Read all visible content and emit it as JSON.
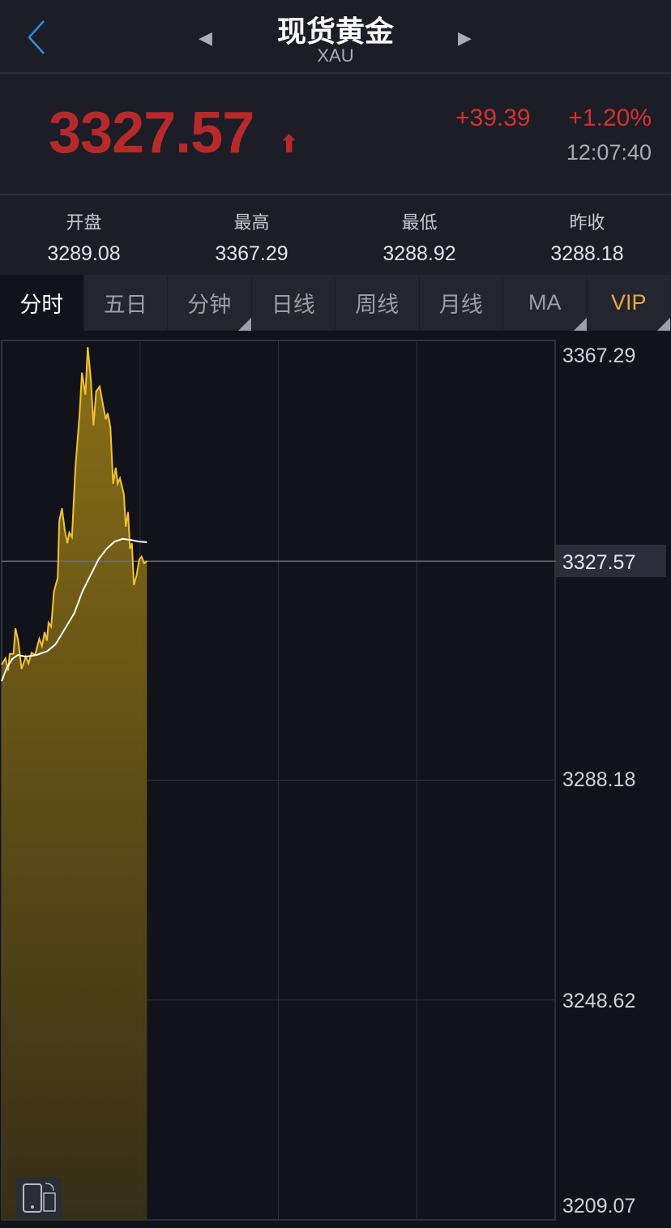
{
  "header": {
    "title": "现货黄金",
    "symbol": "XAU",
    "back_icon": "chevron-left-icon",
    "prev_icon": "triangle-left-icon",
    "next_icon": "triangle-right-icon"
  },
  "quote": {
    "price": "3327.57",
    "direction": "up",
    "change": "+39.39",
    "change_pct": "+1.20%",
    "time": "12:07:40",
    "up_color": "#b82a2a"
  },
  "stats": [
    {
      "label": "开盘",
      "value": "3289.08"
    },
    {
      "label": "最高",
      "value": "3367.29"
    },
    {
      "label": "最低",
      "value": "3288.92"
    },
    {
      "label": "昨收",
      "value": "3288.18"
    }
  ],
  "tabs": [
    {
      "label": "分时",
      "active": true
    },
    {
      "label": "五日"
    },
    {
      "label": "分钟",
      "dropdown": true
    },
    {
      "label": "日线"
    },
    {
      "label": "周线"
    },
    {
      "label": "月线"
    },
    {
      "label": "MA",
      "dropdown": true
    },
    {
      "label": "VIP",
      "dropdown": true
    }
  ],
  "chart_data": {
    "type": "area",
    "ylim": [
      3209.07,
      3367.29
    ],
    "y_ticks": [
      "3367.29",
      "3327.57",
      "3288.18",
      "3248.62",
      "3209.07"
    ],
    "current_price_label": "3327.57",
    "grid": true,
    "line_color": "#f2c230",
    "avg_color": "#ffffff",
    "price": [
      [
        0,
        3308.96
      ],
      [
        10,
        3310.1
      ],
      [
        17,
        3307.9
      ],
      [
        21,
        3310.9
      ],
      [
        31,
        3310.9
      ],
      [
        36,
        3315.5
      ],
      [
        43,
        3313.3
      ],
      [
        52,
        3308.2
      ],
      [
        63,
        3310.4
      ],
      [
        70,
        3309.2
      ],
      [
        78,
        3311.1
      ],
      [
        87,
        3310.7
      ],
      [
        98,
        3313.6
      ],
      [
        105,
        3312.3
      ],
      [
        112,
        3314.8
      ],
      [
        118,
        3313.3
      ],
      [
        122,
        3316.5
      ],
      [
        129,
        3315.8
      ],
      [
        136,
        3322.1
      ],
      [
        146,
        3324.6
      ],
      [
        150,
        3334.8
      ],
      [
        157,
        3337.1
      ],
      [
        164,
        3333.3
      ],
      [
        171,
        3330.8
      ],
      [
        176,
        3332.7
      ],
      [
        183,
        3331.9
      ],
      [
        192,
        3344.4
      ],
      [
        203,
        3354.2
      ],
      [
        209,
        3361.5
      ],
      [
        218,
        3357.5
      ],
      [
        224,
        3366.1
      ],
      [
        232,
        3360.4
      ],
      [
        239,
        3352.0
      ],
      [
        246,
        3358.1
      ],
      [
        255,
        3359.0
      ],
      [
        264,
        3355.6
      ],
      [
        271,
        3353.1
      ],
      [
        276,
        3354.2
      ],
      [
        283,
        3351.7
      ],
      [
        290,
        3341.5
      ],
      [
        297,
        3344.4
      ],
      [
        302,
        3341.5
      ],
      [
        308,
        3342.5
      ],
      [
        318,
        3339.6
      ],
      [
        323,
        3333.8
      ],
      [
        329,
        3336.4
      ],
      [
        334,
        3329.8
      ],
      [
        339,
        3330.8
      ],
      [
        344,
        3323.3
      ],
      [
        351,
        3325.0
      ],
      [
        358,
        3327.9
      ],
      [
        364,
        3328.4
      ],
      [
        371,
        3327.2
      ],
      [
        378,
        3327.6
      ]
    ],
    "average": [
      [
        0,
        3306.0
      ],
      [
        14,
        3308.5
      ],
      [
        28,
        3310.0
      ],
      [
        42,
        3310.7
      ],
      [
        63,
        3310.4
      ],
      [
        91,
        3310.7
      ],
      [
        119,
        3311.4
      ],
      [
        140,
        3312.6
      ],
      [
        168,
        3315.8
      ],
      [
        189,
        3318.2
      ],
      [
        210,
        3322.1
      ],
      [
        231,
        3325.0
      ],
      [
        252,
        3327.9
      ],
      [
        273,
        3329.8
      ],
      [
        294,
        3331.1
      ],
      [
        315,
        3331.6
      ],
      [
        336,
        3331.4
      ],
      [
        357,
        3331.1
      ],
      [
        378,
        3331.0
      ]
    ],
    "x_max": 1440
  },
  "rotate_icon": "rotate-screen-icon"
}
